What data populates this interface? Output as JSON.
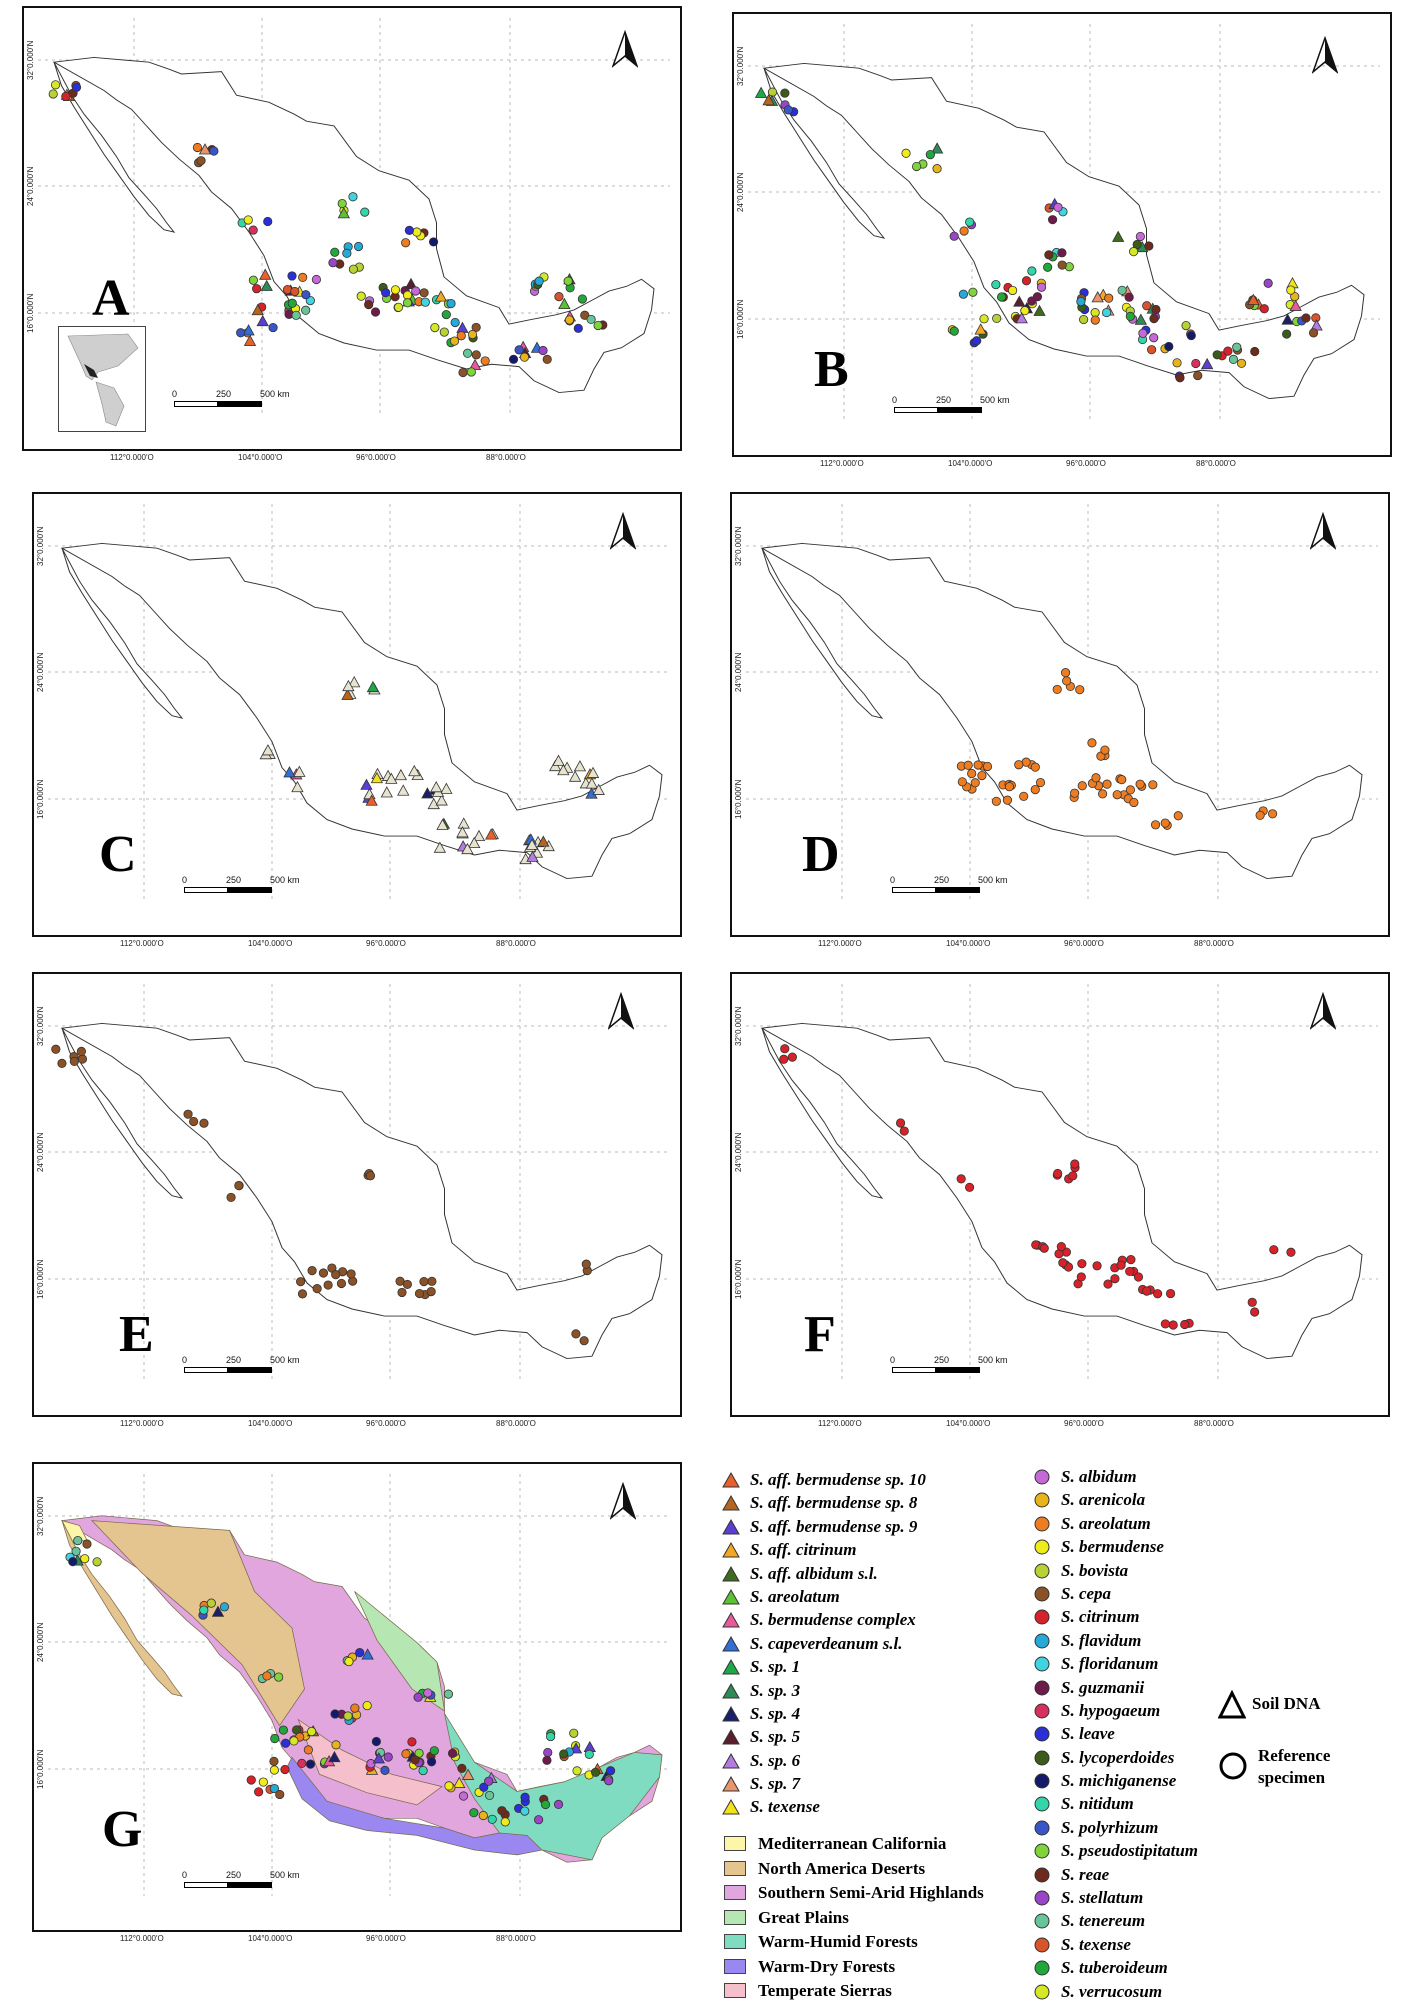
{
  "panels": [
    {
      "label": "A",
      "points": "mixed",
      "inset": true
    },
    {
      "label": "B",
      "points": "mixed-circles"
    },
    {
      "label": "C",
      "points": "triangles"
    },
    {
      "label": "D",
      "points": "orange"
    },
    {
      "label": "E",
      "points": "brown"
    },
    {
      "label": "F",
      "points": "red"
    },
    {
      "label": "G",
      "points": "mixed",
      "ecoregions": true
    }
  ],
  "axes": {
    "lat_ticks": [
      "32°0.000'N",
      "24°0.000'N",
      "16°0.000'N"
    ],
    "lon_ticks": [
      "112°0.000'O",
      "104°0.000'O",
      "96°0.000'O",
      "88°0.000'O"
    ]
  },
  "scale_bar": {
    "ticks": [
      "0",
      "250",
      "500 km"
    ]
  },
  "triangle_legend": [
    {
      "prefix": "S.",
      "name": "aff. bermudense sp. 10",
      "color": "#e8612c"
    },
    {
      "prefix": "S.",
      "name": "aff. bermudense sp. 8",
      "color": "#b5651d"
    },
    {
      "prefix": "S.",
      "name": "aff. bermudense sp. 9",
      "color": "#5a3fd1"
    },
    {
      "prefix": "S.",
      "name": "aff. citrinum",
      "color": "#f5a623"
    },
    {
      "prefix": "S.",
      "name": "aff. albidum s.l.",
      "color": "#3e6b1f"
    },
    {
      "prefix": "S.",
      "name": "areolatum",
      "color": "#5bc236"
    },
    {
      "prefix": "S.",
      "name": "bermudense complex",
      "color": "#e85a9c"
    },
    {
      "prefix": "S.",
      "name": "capeverdeanum s.l.",
      "color": "#2f6fd6"
    },
    {
      "prefix": "S.",
      "name": "sp. 1",
      "color": "#1fa84a"
    },
    {
      "prefix": "S.",
      "name": "sp. 3",
      "color": "#2e8b57"
    },
    {
      "prefix": "S.",
      "name": "sp. 4",
      "color": "#1b1f6b"
    },
    {
      "prefix": "S.",
      "name": "sp. 5",
      "color": "#5a1f2e"
    },
    {
      "prefix": "S.",
      "name": "sp. 6",
      "color": "#b57be0"
    },
    {
      "prefix": "S.",
      "name": "sp. 7",
      "color": "#e8956b"
    },
    {
      "prefix": "S.",
      "name": "texense",
      "color": "#f2e21c"
    }
  ],
  "circle_legend": [
    {
      "prefix": "S.",
      "name": "albidum",
      "color": "#c469d6"
    },
    {
      "prefix": "S.",
      "name": "arenicola",
      "color": "#e8b41c"
    },
    {
      "prefix": "S.",
      "name": "areolatum",
      "color": "#ee7d22"
    },
    {
      "prefix": "S.",
      "name": "bermudense",
      "color": "#f0ec1a"
    },
    {
      "prefix": "S.",
      "name": "bovista",
      "color": "#b8d134"
    },
    {
      "prefix": "S.",
      "name": "cepa",
      "color": "#8b5228"
    },
    {
      "prefix": "S.",
      "name": "citrinum",
      "color": "#d8222a"
    },
    {
      "prefix": "S.",
      "name": "flavidum",
      "color": "#27a9d8"
    },
    {
      "prefix": "S.",
      "name": "floridanum",
      "color": "#3fd4e0"
    },
    {
      "prefix": "S.",
      "name": "guzmanii",
      "color": "#6e1a4a"
    },
    {
      "prefix": "S.",
      "name": "hypogaeum",
      "color": "#d8305c"
    },
    {
      "prefix": "S.",
      "name": "leave",
      "color": "#2a2fd6"
    },
    {
      "prefix": "S.",
      "name": "lycoperdoides",
      "color": "#3c5a1a"
    },
    {
      "prefix": "S.",
      "name": "michiganense",
      "color": "#141a6b"
    },
    {
      "prefix": "S.",
      "name": "nitidum",
      "color": "#33d6a8"
    },
    {
      "prefix": "S.",
      "name": "polyrhizum",
      "color": "#3a55c8"
    },
    {
      "prefix": "S.",
      "name": "pseudostipitatum",
      "color": "#7fd43a"
    },
    {
      "prefix": "S.",
      "name": "reae",
      "color": "#6e2a1c"
    },
    {
      "prefix": "S.",
      "name": "stellatum",
      "color": "#9a44c8"
    },
    {
      "prefix": "S.",
      "name": "tenereum",
      "color": "#6ac49a"
    },
    {
      "prefix": "S.",
      "name": "texense",
      "color": "#d8542a"
    },
    {
      "prefix": "S.",
      "name": "tuberoideum",
      "color": "#22a83a"
    },
    {
      "prefix": "S.",
      "name": "verrucosum",
      "color": "#d4e826"
    }
  ],
  "ecoregions": [
    {
      "name": "Mediterranean California",
      "color": "#fbf6a8"
    },
    {
      "name": "North America Deserts",
      "color": "#e5c58f"
    },
    {
      "name": "Southern Semi-Arid Highlands",
      "color": "#e2a6df"
    },
    {
      "name": "Great Plains",
      "color": "#b6e6b1"
    },
    {
      "name": "Warm-Humid Forests",
      "color": "#80dcc1"
    },
    {
      "name": "Warm-Dry Forests",
      "color": "#9a88f0"
    },
    {
      "name": "Temperate Sierras",
      "color": "#f5bfcb"
    }
  ],
  "key": {
    "soil_dna": "Soil DNA",
    "reference": "Reference specimen"
  }
}
